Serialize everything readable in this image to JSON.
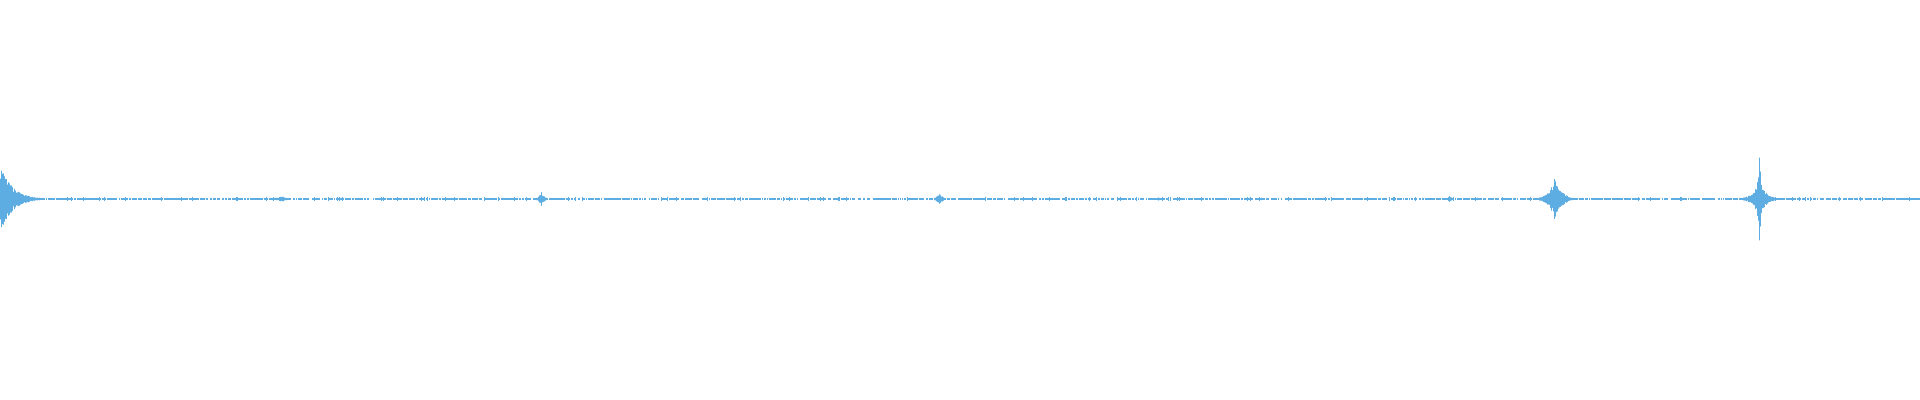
{
  "waveform": {
    "color": "#5dade2",
    "background": "#ffffff",
    "sample_count": 1920,
    "baseline_amplitude": 0.006,
    "events": [
      {
        "sample": 0,
        "amplitude": 0.17,
        "decay": 12,
        "one_sided": true
      },
      {
        "sample": 281,
        "amplitude": 0.015,
        "decay": 6
      },
      {
        "sample": 541,
        "amplitude": 0.035,
        "decay": 3
      },
      {
        "sample": 939,
        "amplitude": 0.035,
        "decay": 3
      },
      {
        "sample": 1158,
        "amplitude": 0.01,
        "decay": 4
      },
      {
        "sample": 1449,
        "amplitude": 0.015,
        "decay": 3
      },
      {
        "sample": 1555,
        "amplitude": 0.12,
        "decay": 6
      },
      {
        "sample": 1759,
        "amplitude": 0.25,
        "decay": 2,
        "body": 0.1
      }
    ]
  }
}
